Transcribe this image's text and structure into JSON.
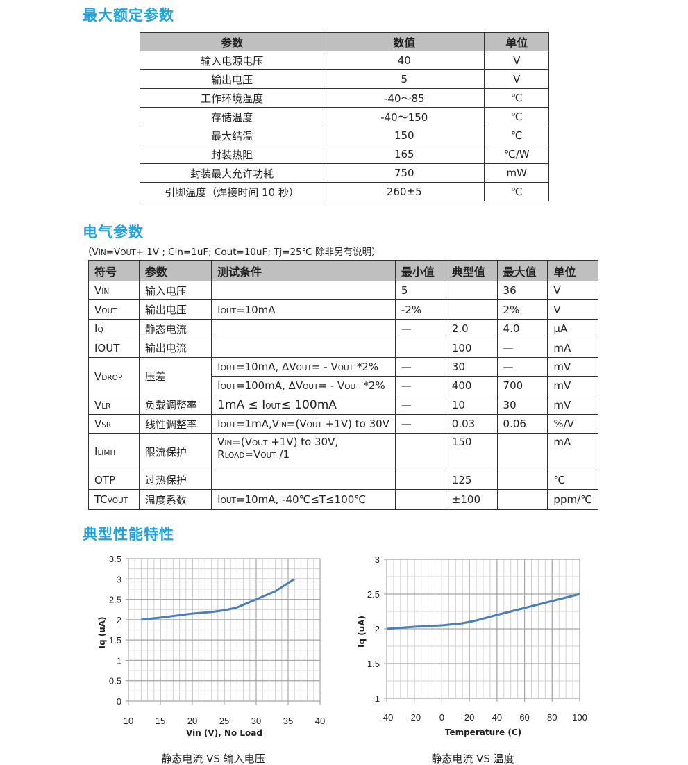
{
  "abs_max": {
    "title": "最大额定参数",
    "headers": [
      "参数",
      "数值",
      "单位"
    ],
    "rows": [
      [
        "输入电源电压",
        "40",
        "V"
      ],
      [
        "输出电压",
        "5",
        "V"
      ],
      [
        "工作环境温度",
        "-40～85",
        "℃"
      ],
      [
        "存储温度",
        "-40～150",
        "℃"
      ],
      [
        "最大结温",
        "150",
        "℃"
      ],
      [
        "封装热阻",
        "165",
        "℃/W"
      ],
      [
        "封装最大允许功耗",
        "750",
        "mW"
      ],
      [
        "引脚温度（焊接时间 10 秒）",
        "260±5",
        "℃"
      ]
    ]
  },
  "elec": {
    "title": "电气参数",
    "note": [
      {
        "t": "（V"
      },
      {
        "sub": "IN"
      },
      {
        "t": "=V"
      },
      {
        "sub": "OUT"
      },
      {
        "t": "+ 1V ; Cin=1uF; Cout=10uF; Tj=25℃  除非另有说明）"
      }
    ],
    "headers": [
      "符号",
      "参数",
      "测试条件",
      "最小值",
      "典型值",
      "最大值",
      "单位"
    ],
    "rows": [
      {
        "symbol": [
          {
            "t": "V"
          },
          {
            "sub": "IN"
          }
        ],
        "param": "输入电压",
        "cond": [],
        "min": "5",
        "typ": "",
        "max": "36",
        "unit": "V"
      },
      {
        "symbol": [
          {
            "t": "V"
          },
          {
            "sub": "OUT"
          }
        ],
        "param": "输出电压",
        "cond": [
          {
            "t": "I"
          },
          {
            "sub": "OUT"
          },
          {
            "t": "=10mA"
          }
        ],
        "min": "-2%",
        "typ": "",
        "max": "2%",
        "unit": "V"
      },
      {
        "symbol": [
          {
            "t": "I"
          },
          {
            "sub": "Q"
          }
        ],
        "param": "静态电流",
        "cond": [],
        "min": "—",
        "typ": "2.0",
        "max": "4.0",
        "unit": "μA"
      },
      {
        "symbol": [
          {
            "t": "IOUT"
          }
        ],
        "param": "输出电流",
        "cond": [],
        "min": "",
        "typ": "100",
        "max": "—",
        "unit": "mA"
      },
      {
        "symbol": [
          {
            "t": "V"
          },
          {
            "sub": "DROP"
          }
        ],
        "param": "压差",
        "cond": [
          {
            "t": "I"
          },
          {
            "sub": "OUT"
          },
          {
            "t": "=10mA,  ΔV"
          },
          {
            "sub": "OUT"
          },
          {
            "t": "= - V"
          },
          {
            "sub": "OUT"
          },
          {
            "t": " *2%"
          }
        ],
        "min": "—",
        "typ": "30",
        "max": "—",
        "unit": "mV"
      },
      {
        "cond": [
          {
            "t": "I"
          },
          {
            "sub": "OUT"
          },
          {
            "t": "=100mA,  ΔV"
          },
          {
            "sub": "OUT"
          },
          {
            "t": "= - V"
          },
          {
            "sub": "OUT"
          },
          {
            "t": " *2%"
          }
        ],
        "min": "—",
        "typ": "400",
        "max": "700",
        "unit": "mV"
      },
      {
        "symbol": [
          {
            "t": "V"
          },
          {
            "sub": "LR"
          }
        ],
        "param": "负载调整率",
        "cond": [
          {
            "big": "1mA ≤ I"
          },
          {
            "sub": "OUT"
          },
          {
            "big": "≤ 100mA"
          }
        ],
        "min": "—",
        "typ": "10",
        "max": "30",
        "unit": "mV"
      },
      {
        "symbol": [
          {
            "t": "V"
          },
          {
            "sub": "SR"
          }
        ],
        "param": "线性调整率",
        "cond": [
          {
            "t": "I"
          },
          {
            "sub": "OUT"
          },
          {
            "t": "=1mA,V"
          },
          {
            "sub": "IN"
          },
          {
            "t": "=(V"
          },
          {
            "sub": "OUT"
          },
          {
            "t": " +1V) to 30V"
          }
        ],
        "min": "—",
        "typ": "0.03",
        "max": "0.06",
        "unit": "%/V"
      },
      {
        "symbol": [
          {
            "t": "I"
          },
          {
            "sub": "LIMIT"
          }
        ],
        "param": "限流保护",
        "cond": [
          {
            "t": "V"
          },
          {
            "sub": "IN"
          },
          {
            "t": "=(V"
          },
          {
            "sub": "OUT"
          },
          {
            "t": " +1V) to 30V,"
          },
          {
            "br": true
          },
          {
            "t": "R"
          },
          {
            "sub": "LOAD"
          },
          {
            "t": "=V"
          },
          {
            "sub": "OUT"
          },
          {
            "t": " /1"
          }
        ],
        "min": "",
        "typ": "150",
        "max": "",
        "unit": "mA"
      },
      {
        "symbol": [
          {
            "t": "OTP"
          }
        ],
        "param": "过热保护",
        "cond": [],
        "min": "",
        "typ": "125",
        "max": "",
        "unit": "℃"
      },
      {
        "symbol": [
          {
            "t": "TC"
          },
          {
            "sub": "VOUT"
          }
        ],
        "param": "温度系数",
        "cond": [
          {
            "t": "I"
          },
          {
            "sub": "OUT"
          },
          {
            "t": "=10mA,  -40℃≤T≤100℃"
          }
        ],
        "min": "",
        "typ": "±100",
        "max": "",
        "unit": "ppm/℃"
      }
    ]
  },
  "typical": {
    "title": "典型性能特性"
  },
  "chart_data": [
    {
      "type": "line",
      "caption": "静态电流  VS  输入电压",
      "xlabel": "Vin (V), No Load",
      "ylabel": "Iq (uA)",
      "xlim": [
        10,
        40
      ],
      "ylim": [
        0,
        3.5
      ],
      "xticks": [
        10,
        15,
        20,
        25,
        30,
        35,
        40
      ],
      "yticks": [
        0,
        0.5,
        1,
        1.5,
        2,
        2.5,
        3,
        3.5
      ],
      "grid": true,
      "line_color": "#4a7ebb",
      "x": [
        12,
        15,
        18,
        20,
        23,
        25,
        27,
        30,
        33,
        36
      ],
      "y": [
        2.0,
        2.05,
        2.11,
        2.15,
        2.19,
        2.23,
        2.3,
        2.5,
        2.7,
        3.0
      ]
    },
    {
      "type": "line",
      "caption": "静态电流  VS  温度",
      "xlabel": "Temperature (C)",
      "ylabel": "Iq (uA)",
      "xlim": [
        -40,
        100
      ],
      "ylim": [
        1,
        3
      ],
      "xticks": [
        -40,
        -20,
        0,
        20,
        40,
        60,
        80,
        100
      ],
      "yticks": [
        1,
        1.5,
        2,
        2.5,
        3
      ],
      "grid": true,
      "line_color": "#4a7ebb",
      "x": [
        -40,
        -20,
        0,
        15,
        25,
        40,
        60,
        80,
        100
      ],
      "y": [
        2.0,
        2.03,
        2.05,
        2.08,
        2.12,
        2.2,
        2.3,
        2.4,
        2.5
      ]
    }
  ]
}
